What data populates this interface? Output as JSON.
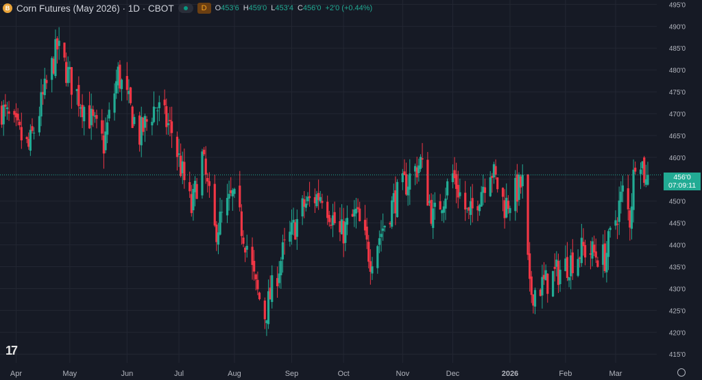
{
  "header": {
    "symbol_icon": "B",
    "title": "Corn Futures (May 2026) · 1D · CBOT",
    "badge": "D",
    "open_label": "O",
    "open": "453'6",
    "high_label": "H",
    "high": "459'0",
    "low_label": "L",
    "low": "453'4",
    "close_label": "C",
    "close": "456'0",
    "change": "+2'0 (+0.44%)"
  },
  "price_tag": {
    "price": "456'0",
    "countdown": "07:09:11"
  },
  "logo": "17",
  "colors": {
    "up": "#22ab94",
    "down": "#f23645",
    "background": "#161a25",
    "grid": "#232733",
    "text": "#d1d4dc"
  },
  "chart_data": {
    "type": "candlestick",
    "title": "Corn Futures (May 2026) · 1D · CBOT",
    "y_axis": {
      "ticks": [
        415,
        420,
        425,
        430,
        435,
        440,
        445,
        450,
        455,
        460,
        465,
        470,
        475,
        480,
        485,
        490,
        495
      ],
      "tick_labels": [
        "415'0",
        "420'0",
        "425'0",
        "430'0",
        "435'0",
        "440'0",
        "445'0",
        "450'0",
        "455'0",
        "460'0",
        "465'0",
        "470'0",
        "475'0",
        "480'0",
        "485'0",
        "490'0",
        "495'0"
      ],
      "range": [
        413,
        496
      ]
    },
    "x_axis": {
      "labels": [
        "Apr",
        "May",
        "Jun",
        "Jul",
        "Aug",
        "Sep",
        "Oct",
        "Nov",
        "Dec",
        "2026",
        "Feb",
        "Mar"
      ],
      "label_dates": [
        "2025-04-01",
        "2025-05-01",
        "2025-06-02",
        "2025-07-01",
        "2025-08-01",
        "2025-09-02",
        "2025-10-01",
        "2025-11-03",
        "2025-12-01",
        "2026-01-02",
        "2026-02-02",
        "2026-03-02"
      ],
      "range": [
        "2025-03-23",
        "2026-03-25"
      ]
    },
    "last_price": 456.0,
    "key_points": [
      {
        "date": "2025-03-24",
        "close": 471
      },
      {
        "date": "2025-04-08",
        "close": 462
      },
      {
        "date": "2025-04-24",
        "close": 485
      },
      {
        "date": "2025-05-02",
        "close": 477
      },
      {
        "date": "2025-05-20",
        "close": 463
      },
      {
        "date": "2025-05-28",
        "close": 479
      },
      {
        "date": "2025-06-09",
        "close": 465
      },
      {
        "date": "2025-06-18",
        "close": 472
      },
      {
        "date": "2025-06-27",
        "close": 466
      },
      {
        "date": "2025-07-08",
        "close": 448
      },
      {
        "date": "2025-07-14",
        "close": 460
      },
      {
        "date": "2025-07-21",
        "close": 443
      },
      {
        "date": "2025-07-31",
        "close": 451
      },
      {
        "date": "2025-08-08",
        "close": 440
      },
      {
        "date": "2025-08-13",
        "close": 430
      },
      {
        "date": "2025-08-18",
        "close": 424
      },
      {
        "date": "2025-08-28",
        "close": 438
      },
      {
        "date": "2025-09-09",
        "close": 449
      },
      {
        "date": "2025-09-19",
        "close": 452
      },
      {
        "date": "2025-09-29",
        "close": 442
      },
      {
        "date": "2025-10-08",
        "close": 447
      },
      {
        "date": "2025-10-16",
        "close": 437
      },
      {
        "date": "2025-10-29",
        "close": 450
      },
      {
        "date": "2025-11-13",
        "close": 459
      },
      {
        "date": "2025-11-20",
        "close": 446
      },
      {
        "date": "2025-12-01",
        "close": 456
      },
      {
        "date": "2025-12-10",
        "close": 446
      },
      {
        "date": "2025-12-22",
        "close": 458
      },
      {
        "date": "2025-12-30",
        "close": 449
      },
      {
        "date": "2026-01-09",
        "close": 454
      },
      {
        "date": "2026-01-13",
        "close": 429
      },
      {
        "date": "2026-01-21",
        "close": 431
      },
      {
        "date": "2026-02-04",
        "close": 436
      },
      {
        "date": "2026-02-12",
        "close": 439
      },
      {
        "date": "2026-02-24",
        "close": 437
      },
      {
        "date": "2026-03-06",
        "close": 452
      },
      {
        "date": "2026-03-10",
        "close": 446
      },
      {
        "date": "2026-03-14",
        "close": 465
      },
      {
        "date": "2026-03-19",
        "close": 454
      },
      {
        "date": "2026-03-20",
        "close": 456
      }
    ]
  }
}
